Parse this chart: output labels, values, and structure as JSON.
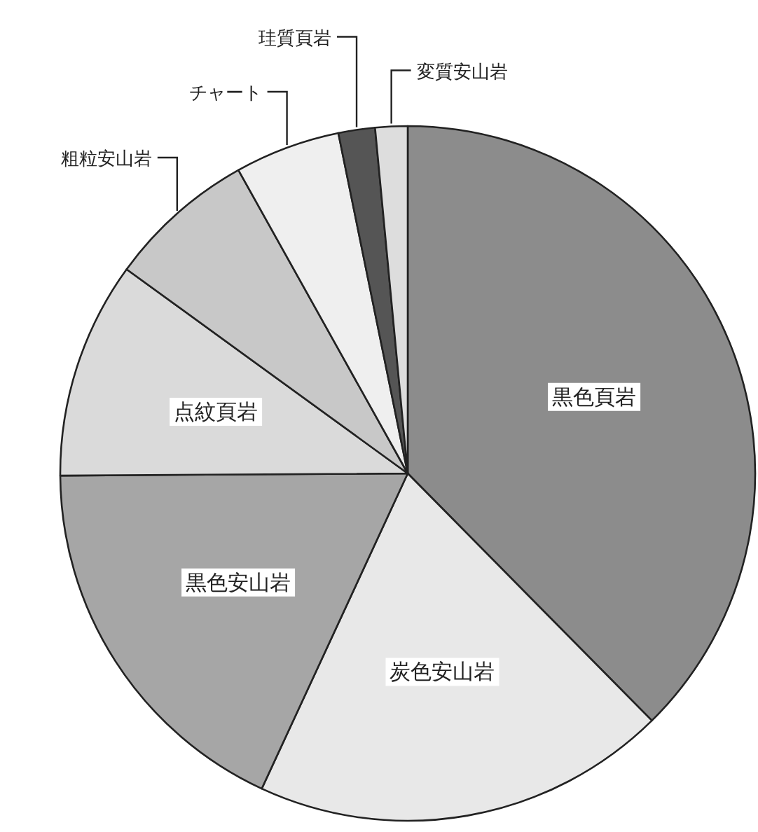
{
  "chart_data": {
    "type": "pie",
    "categories": [
      "黒色頁岩",
      "炭色安山岩",
      "黒色安山岩",
      "点紋頁岩",
      "粗粒安山岩",
      "チャート",
      "珪質頁岩",
      "変質安山岩"
    ],
    "values": [
      37.6,
      19.3,
      18.0,
      10.1,
      6.9,
      4.9,
      1.7,
      1.5
    ],
    "colors": [
      "#8c8c8c",
      "#e8e8e8",
      "#a6a6a6",
      "#dadada",
      "#c8c8c8",
      "#efefef",
      "#555555",
      "#dddddd"
    ]
  }
}
